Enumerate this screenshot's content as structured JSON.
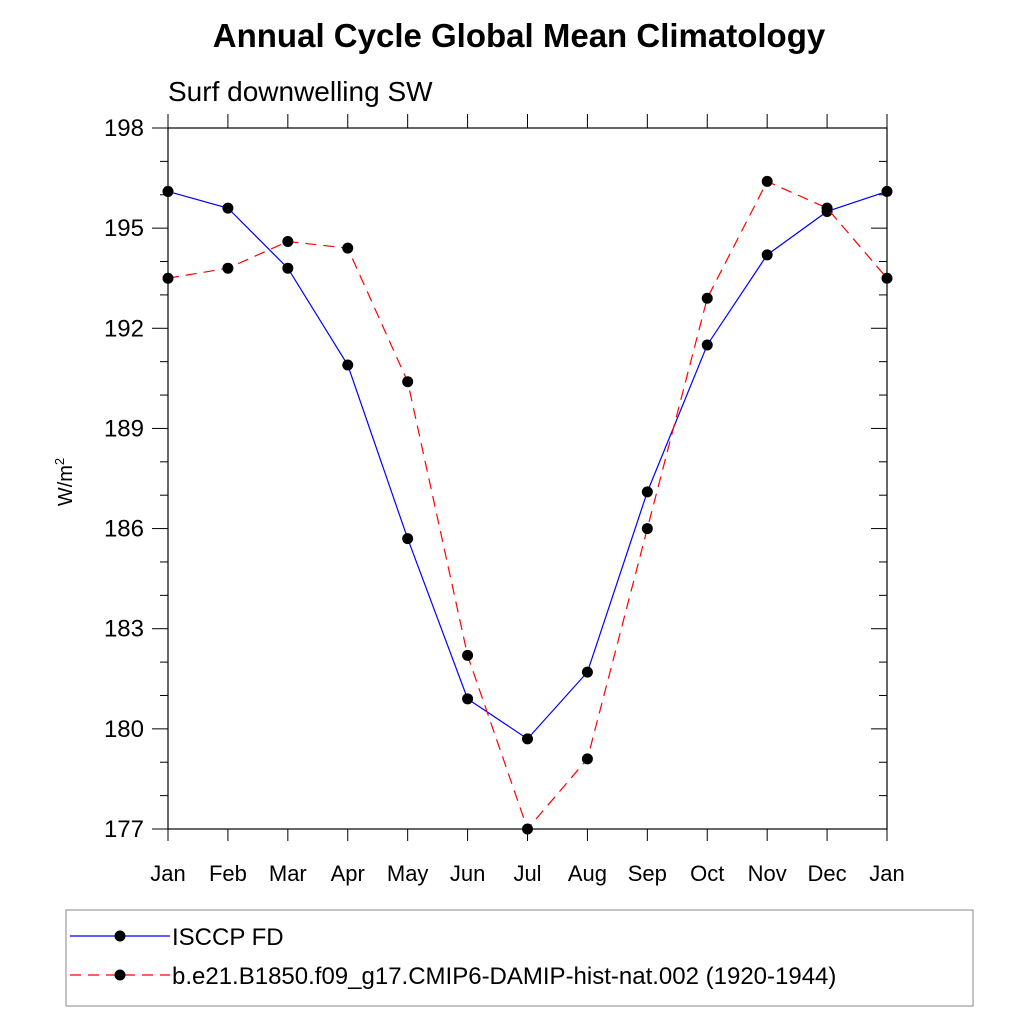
{
  "chart_data": {
    "type": "line",
    "title": "Annual Cycle Global Mean Climatology",
    "subtitle": "Surf downwelling SW",
    "ylabel": "W/m",
    "ylabel_superscript": "2",
    "xlabel": "",
    "categories": [
      "Jan",
      "Feb",
      "Mar",
      "Apr",
      "May",
      "Jun",
      "Jul",
      "Aug",
      "Sep",
      "Oct",
      "Nov",
      "Dec",
      "Jan"
    ],
    "ylim": [
      177,
      198
    ],
    "yticks": [
      177,
      180,
      183,
      186,
      189,
      192,
      195,
      198
    ],
    "grid": false,
    "legend_position": "bottom",
    "series": [
      {
        "name": "ISCCP FD",
        "color": "#0000ff",
        "dash": "solid",
        "values": [
          196.1,
          195.6,
          193.8,
          190.9,
          185.7,
          180.9,
          179.7,
          181.7,
          187.1,
          191.5,
          194.2,
          195.5,
          196.1
        ]
      },
      {
        "name": "b.e21.B1850.f09_g17.CMIP6-DAMIP-hist-nat.002 (1920-1944)",
        "color": "#ff0000",
        "dash": "dashed",
        "values": [
          193.5,
          193.8,
          194.6,
          194.4,
          190.4,
          182.2,
          177.0,
          179.1,
          186.0,
          192.9,
          196.4,
          195.6,
          193.5
        ]
      }
    ]
  }
}
